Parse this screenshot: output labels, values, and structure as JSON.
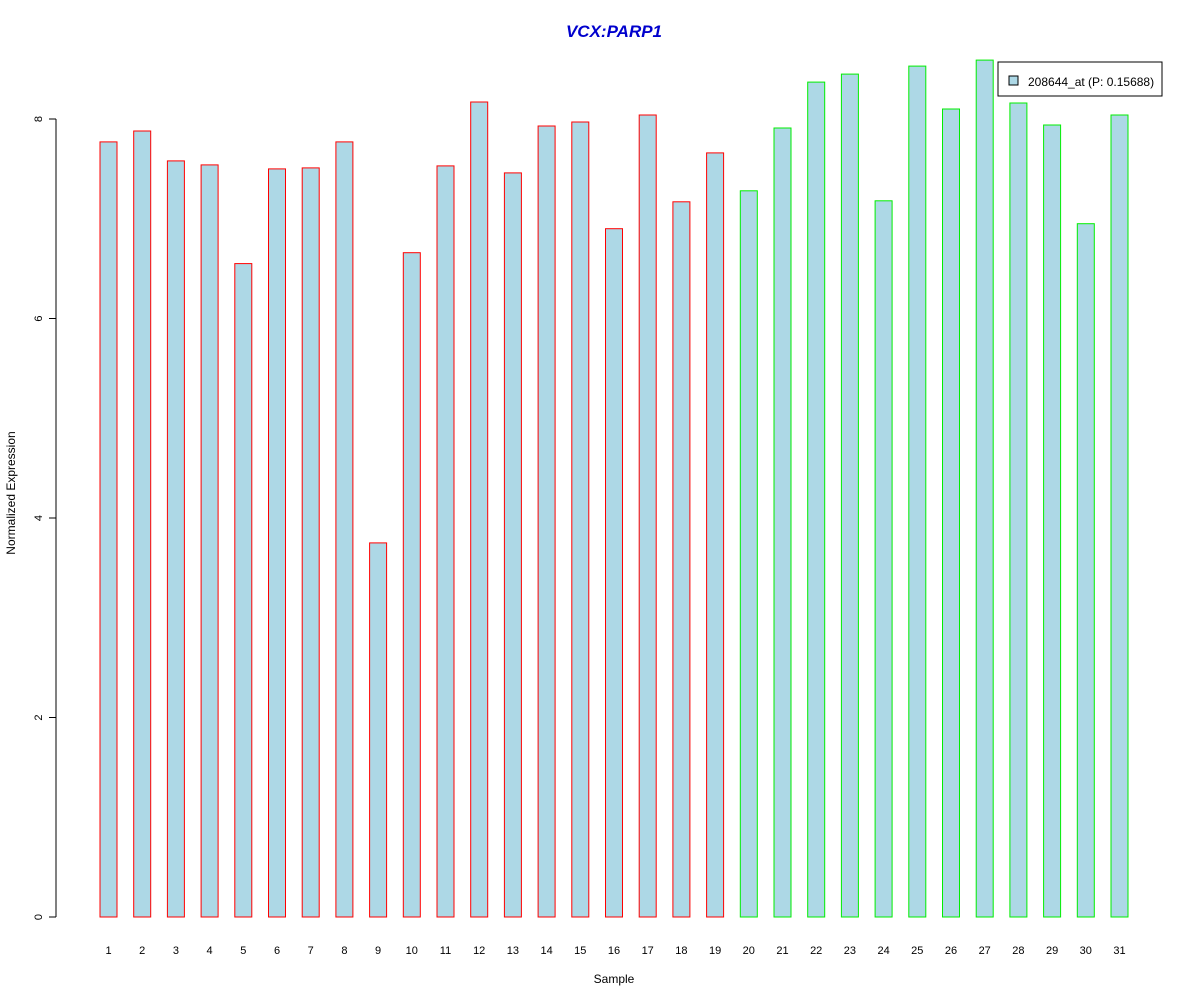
{
  "chart_data": {
    "type": "bar",
    "title": "VCX:PARP1",
    "xlabel": "Sample",
    "ylabel": "Normalized Expression",
    "ylim": [
      0,
      8.6
    ],
    "yticks": [
      0,
      2,
      4,
      6,
      8
    ],
    "grid": false,
    "legend_position": "top-right",
    "categories": [
      "1",
      "2",
      "3",
      "4",
      "5",
      "6",
      "7",
      "8",
      "9",
      "10",
      "11",
      "12",
      "13",
      "14",
      "15",
      "16",
      "17",
      "18",
      "19",
      "20",
      "21",
      "22",
      "23",
      "24",
      "25",
      "26",
      "27",
      "28",
      "29",
      "30",
      "31"
    ],
    "series": [
      {
        "name": "208644_at (P: 0.15688)",
        "values": [
          7.77,
          7.88,
          7.58,
          7.54,
          6.55,
          7.5,
          7.51,
          7.77,
          3.75,
          6.66,
          7.53,
          8.17,
          7.46,
          7.93,
          7.97,
          6.9,
          8.04,
          7.17,
          7.66,
          7.28,
          7.91,
          8.37,
          8.45,
          7.18,
          8.53,
          8.1,
          8.59,
          8.16,
          7.94,
          6.95,
          8.04
        ]
      }
    ],
    "groups": [
      {
        "samples": [
          1,
          19
        ],
        "border_color": "#ff0000"
      },
      {
        "samples": [
          20,
          31
        ],
        "border_color": "#00ee00"
      }
    ],
    "bar_fill": "#add8e6",
    "title_color": "#0000cd"
  }
}
